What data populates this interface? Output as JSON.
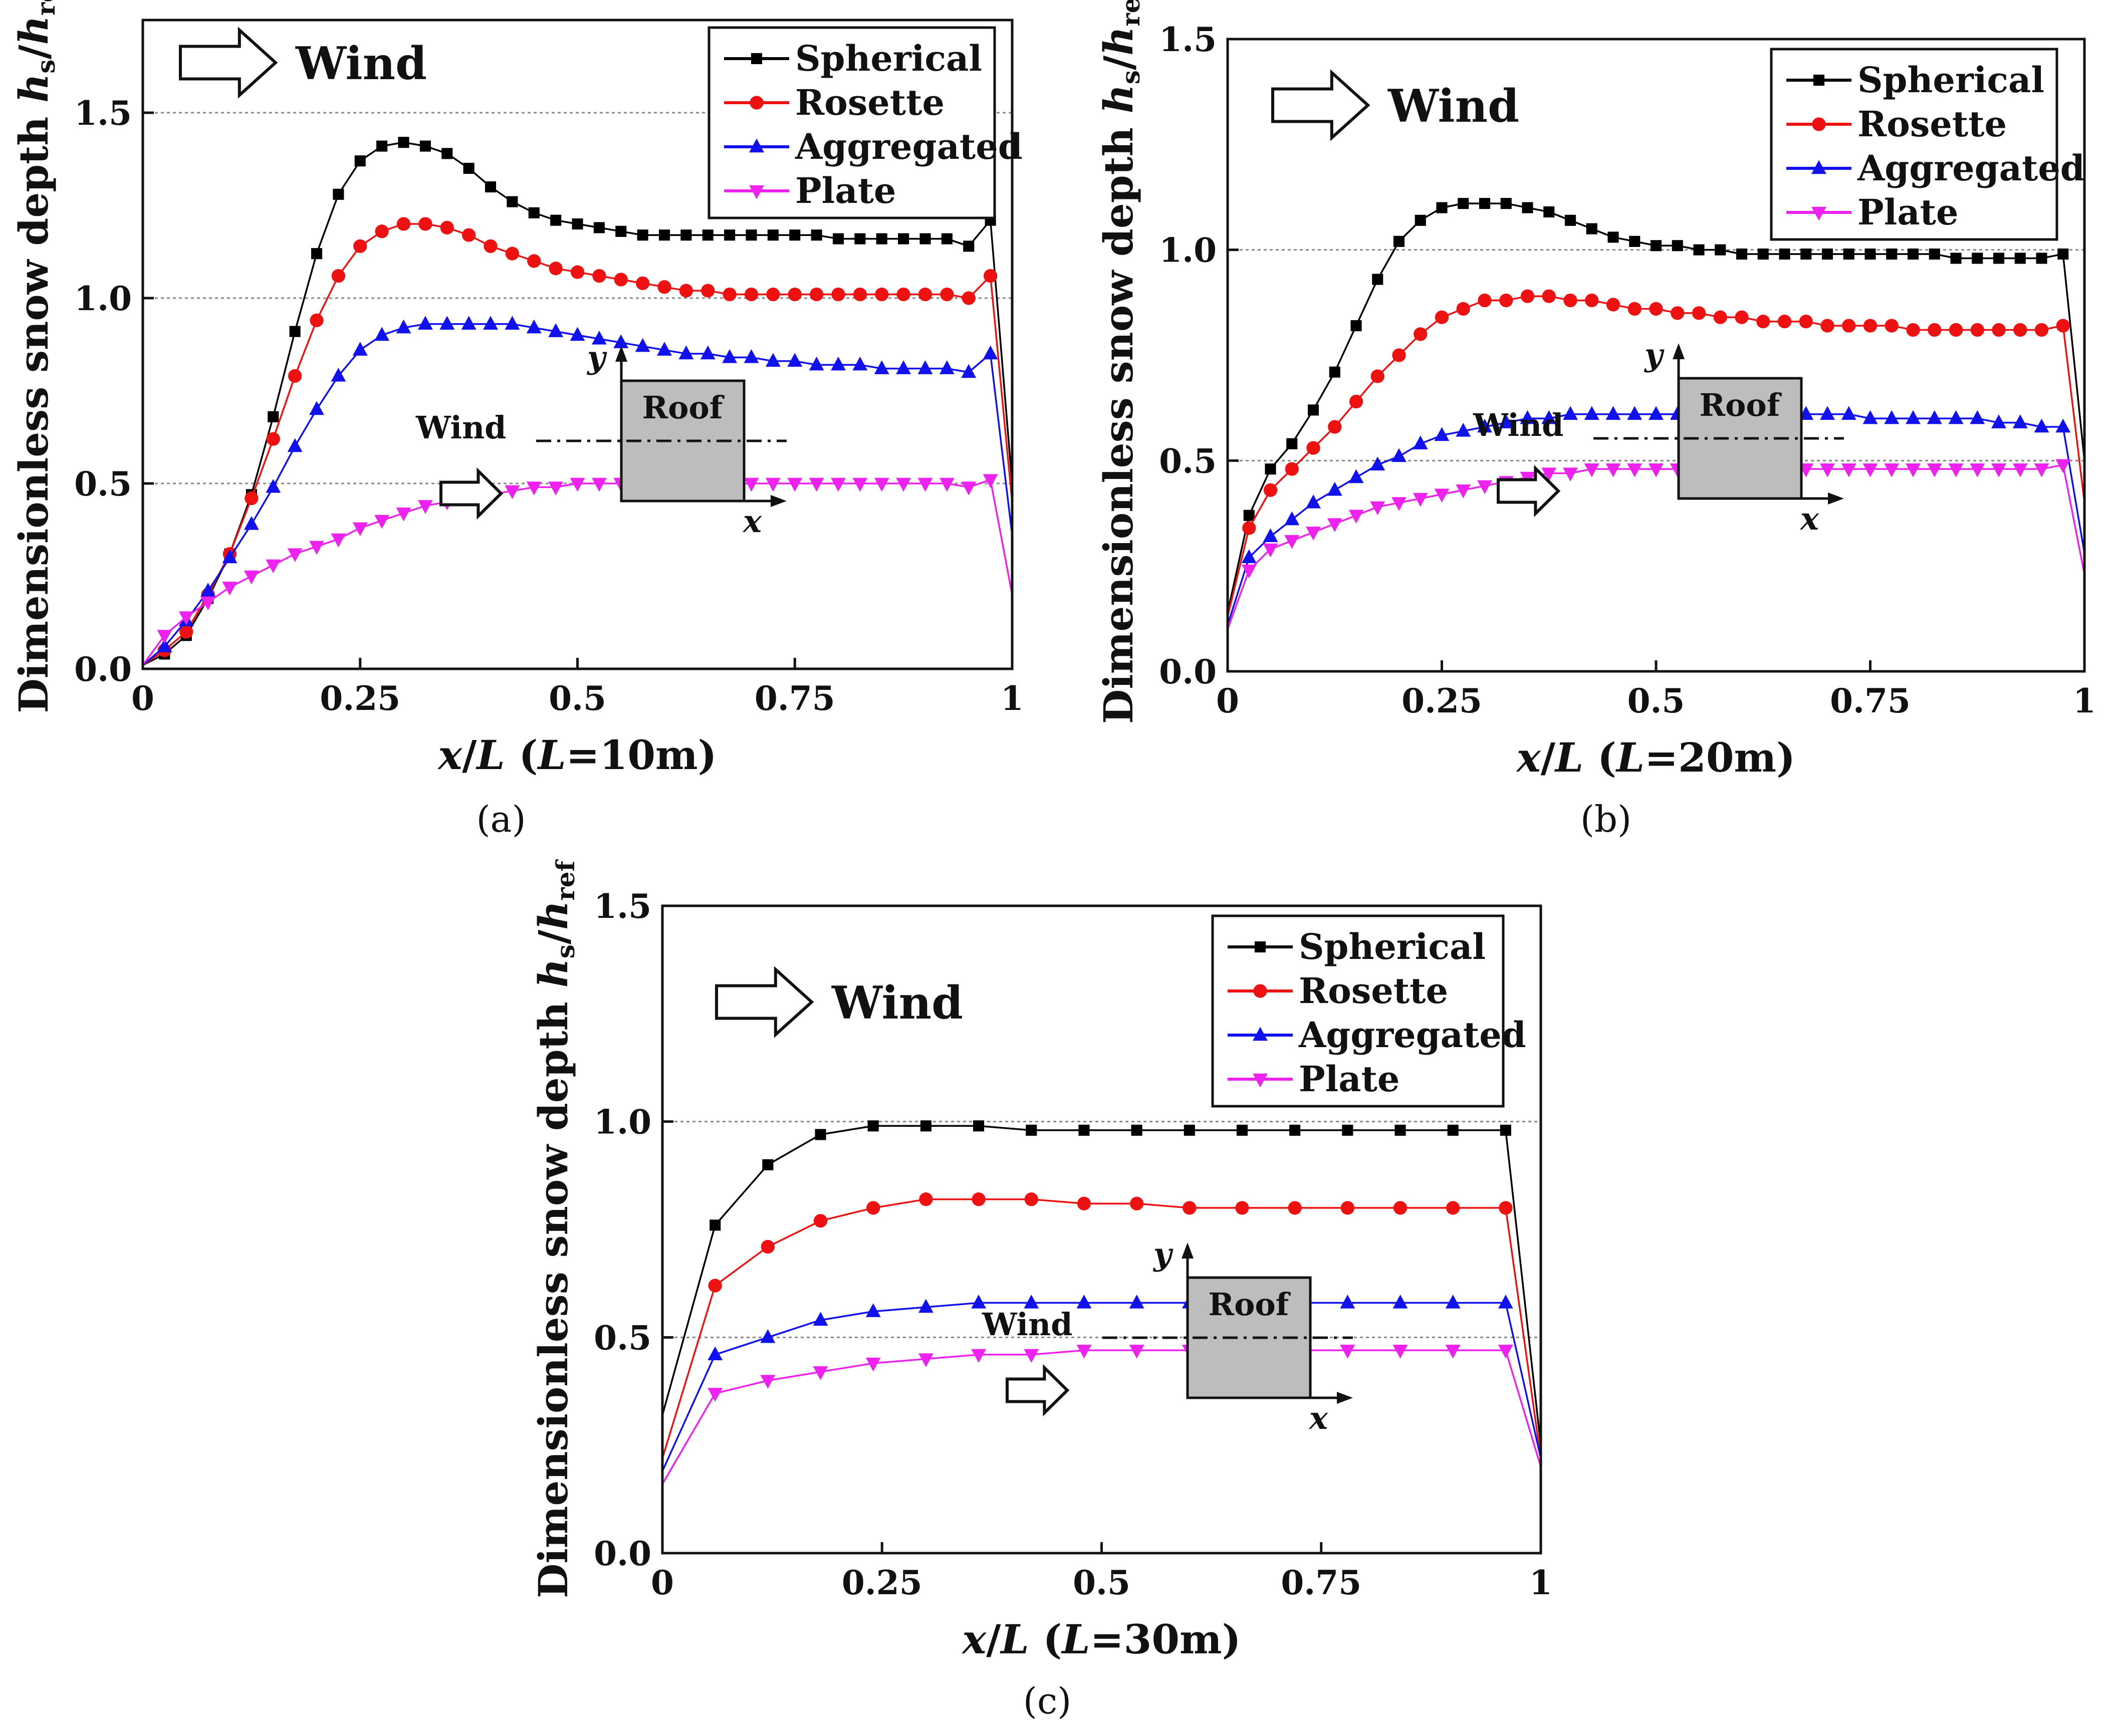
{
  "chart_data": [
    {
      "type": "line",
      "caption": "(a)",
      "xlabel": "x/L (L=10m)",
      "xlabel_parts": [
        "x",
        "/",
        "L",
        " (",
        "L",
        "=10m)"
      ],
      "ylabel": "Dimensionless snow depth hs/href",
      "ylabel_parts": [
        "Dimensionless snow depth ",
        "h",
        "s",
        "/",
        "h",
        "ref"
      ],
      "xlim": [
        0,
        1
      ],
      "ylim": [
        0,
        1.75
      ],
      "xticks": [
        0,
        0.25,
        0.5,
        0.75,
        1
      ],
      "xtick_labels": [
        "0",
        "0.25",
        "0.5",
        "0.75",
        "1"
      ],
      "yticks": [
        0,
        0.5,
        1.0,
        1.5
      ],
      "ytick_labels": [
        "0.0",
        "0.5",
        "1.0",
        "1.5"
      ],
      "gridlines_y": [
        0.5,
        1.0,
        1.5
      ],
      "wind_label": "Wind",
      "inset": {
        "wind": "Wind",
        "roof": "Roof",
        "x_axis": "x",
        "y_axis": "y"
      },
      "legend_position": "top-right",
      "x": [
        0,
        0.025,
        0.05,
        0.075,
        0.1,
        0.125,
        0.15,
        0.175,
        0.2,
        0.225,
        0.25,
        0.275,
        0.3,
        0.325,
        0.35,
        0.375,
        0.4,
        0.425,
        0.45,
        0.475,
        0.5,
        0.525,
        0.55,
        0.575,
        0.6,
        0.625,
        0.65,
        0.675,
        0.7,
        0.725,
        0.75,
        0.775,
        0.8,
        0.825,
        0.85,
        0.875,
        0.9,
        0.925,
        0.95,
        0.975,
        1.0
      ],
      "series": [
        {
          "name": "Spherical",
          "color": "#000000",
          "marker": "square",
          "values": [
            0.01,
            0.04,
            0.09,
            0.19,
            0.31,
            0.47,
            0.68,
            0.91,
            1.12,
            1.28,
            1.37,
            1.41,
            1.42,
            1.41,
            1.39,
            1.35,
            1.3,
            1.26,
            1.23,
            1.21,
            1.2,
            1.19,
            1.18,
            1.17,
            1.17,
            1.17,
            1.17,
            1.17,
            1.17,
            1.17,
            1.17,
            1.17,
            1.16,
            1.16,
            1.16,
            1.16,
            1.16,
            1.16,
            1.14,
            1.21,
            0.5
          ]
        },
        {
          "name": "Rosette",
          "color": "#ee1111",
          "marker": "circle",
          "values": [
            0.01,
            0.05,
            0.1,
            0.2,
            0.31,
            0.46,
            0.62,
            0.79,
            0.94,
            1.06,
            1.14,
            1.18,
            1.2,
            1.2,
            1.19,
            1.17,
            1.14,
            1.12,
            1.1,
            1.08,
            1.07,
            1.06,
            1.05,
            1.04,
            1.03,
            1.02,
            1.02,
            1.01,
            1.01,
            1.01,
            1.01,
            1.01,
            1.01,
            1.01,
            1.01,
            1.01,
            1.01,
            1.01,
            1.0,
            1.06,
            0.45
          ]
        },
        {
          "name": "Aggregated",
          "color": "#1111ee",
          "marker": "triangle-up",
          "values": [
            0.01,
            0.06,
            0.13,
            0.21,
            0.3,
            0.39,
            0.49,
            0.6,
            0.7,
            0.79,
            0.86,
            0.9,
            0.92,
            0.93,
            0.93,
            0.93,
            0.93,
            0.93,
            0.92,
            0.91,
            0.9,
            0.89,
            0.88,
            0.87,
            0.86,
            0.85,
            0.85,
            0.84,
            0.84,
            0.83,
            0.83,
            0.82,
            0.82,
            0.82,
            0.81,
            0.81,
            0.81,
            0.81,
            0.8,
            0.85,
            0.36
          ]
        },
        {
          "name": "Plate",
          "color": "#ee22ee",
          "marker": "triangle-down",
          "values": [
            0.01,
            0.09,
            0.14,
            0.18,
            0.22,
            0.25,
            0.28,
            0.31,
            0.33,
            0.35,
            0.38,
            0.4,
            0.42,
            0.44,
            0.45,
            0.46,
            0.47,
            0.48,
            0.49,
            0.49,
            0.5,
            0.5,
            0.5,
            0.5,
            0.5,
            0.5,
            0.5,
            0.5,
            0.5,
            0.5,
            0.5,
            0.5,
            0.5,
            0.5,
            0.5,
            0.5,
            0.5,
            0.5,
            0.49,
            0.51,
            0.2
          ]
        }
      ]
    },
    {
      "type": "line",
      "caption": "(b)",
      "xlabel": "x/L (L=20m)",
      "xlabel_parts": [
        "x",
        "/",
        "L",
        " (",
        "L",
        "=20m)"
      ],
      "ylabel": "Dimensionless snow depth hs/href",
      "ylabel_parts": [
        "Dimensionless snow depth ",
        "h",
        "s",
        "/",
        "h",
        "ref"
      ],
      "xlim": [
        0,
        1
      ],
      "ylim": [
        0,
        1.5
      ],
      "xticks": [
        0,
        0.25,
        0.5,
        0.75,
        1
      ],
      "xtick_labels": [
        "0",
        "0.25",
        "0.5",
        "0.75",
        "1"
      ],
      "yticks": [
        0,
        0.5,
        1.0,
        1.5
      ],
      "ytick_labels": [
        "0.0",
        "0.5",
        "1.0",
        "1.5"
      ],
      "gridlines_y": [
        0.5,
        1.0
      ],
      "wind_label": "Wind",
      "inset": {
        "wind": "Wind",
        "roof": "Roof",
        "x_axis": "x",
        "y_axis": "y"
      },
      "legend_position": "top-right",
      "x": [
        0,
        0.025,
        0.05,
        0.075,
        0.1,
        0.125,
        0.15,
        0.175,
        0.2,
        0.225,
        0.25,
        0.275,
        0.3,
        0.325,
        0.35,
        0.375,
        0.4,
        0.425,
        0.45,
        0.475,
        0.5,
        0.525,
        0.55,
        0.575,
        0.6,
        0.625,
        0.65,
        0.675,
        0.7,
        0.725,
        0.75,
        0.775,
        0.8,
        0.825,
        0.85,
        0.875,
        0.9,
        0.925,
        0.95,
        0.975,
        1.0
      ],
      "series": [
        {
          "name": "Spherical",
          "color": "#000000",
          "marker": "square",
          "values": [
            0.14,
            0.37,
            0.48,
            0.54,
            0.62,
            0.71,
            0.82,
            0.93,
            1.02,
            1.07,
            1.1,
            1.11,
            1.11,
            1.11,
            1.1,
            1.09,
            1.07,
            1.05,
            1.03,
            1.02,
            1.01,
            1.01,
            1.0,
            1.0,
            0.99,
            0.99,
            0.99,
            0.99,
            0.99,
            0.99,
            0.99,
            0.99,
            0.99,
            0.99,
            0.98,
            0.98,
            0.98,
            0.98,
            0.98,
            0.99,
            0.5
          ]
        },
        {
          "name": "Rosette",
          "color": "#ee1111",
          "marker": "circle",
          "values": [
            0.13,
            0.34,
            0.43,
            0.48,
            0.53,
            0.58,
            0.64,
            0.7,
            0.75,
            0.8,
            0.84,
            0.86,
            0.88,
            0.88,
            0.89,
            0.89,
            0.88,
            0.88,
            0.87,
            0.86,
            0.86,
            0.85,
            0.85,
            0.84,
            0.84,
            0.83,
            0.83,
            0.83,
            0.82,
            0.82,
            0.82,
            0.82,
            0.81,
            0.81,
            0.81,
            0.81,
            0.81,
            0.81,
            0.81,
            0.82,
            0.4
          ]
        },
        {
          "name": "Aggregated",
          "color": "#1111ee",
          "marker": "triangle-up",
          "values": [
            0.11,
            0.27,
            0.32,
            0.36,
            0.4,
            0.43,
            0.46,
            0.49,
            0.51,
            0.54,
            0.56,
            0.57,
            0.58,
            0.59,
            0.6,
            0.6,
            0.61,
            0.61,
            0.61,
            0.61,
            0.61,
            0.61,
            0.61,
            0.61,
            0.61,
            0.61,
            0.61,
            0.61,
            0.61,
            0.61,
            0.6,
            0.6,
            0.6,
            0.6,
            0.6,
            0.6,
            0.59,
            0.59,
            0.58,
            0.58,
            0.28
          ]
        },
        {
          "name": "Plate",
          "color": "#ee22ee",
          "marker": "triangle-down",
          "values": [
            0.1,
            0.24,
            0.29,
            0.31,
            0.33,
            0.35,
            0.37,
            0.39,
            0.4,
            0.41,
            0.42,
            0.43,
            0.44,
            0.45,
            0.46,
            0.47,
            0.47,
            0.48,
            0.48,
            0.48,
            0.48,
            0.48,
            0.48,
            0.48,
            0.48,
            0.48,
            0.48,
            0.48,
            0.48,
            0.48,
            0.48,
            0.48,
            0.48,
            0.48,
            0.48,
            0.48,
            0.48,
            0.48,
            0.48,
            0.49,
            0.23
          ]
        }
      ]
    },
    {
      "type": "line",
      "caption": "(c)",
      "xlabel": "x/L (L=30m)",
      "xlabel_parts": [
        "x",
        "/",
        "L",
        " (",
        "L",
        "=30m)"
      ],
      "ylabel": "Dimensionless snow depth hs/href",
      "ylabel_parts": [
        "Dimensionless snow depth ",
        "h",
        "s",
        "/",
        "h",
        "ref"
      ],
      "xlim": [
        0,
        1
      ],
      "ylim": [
        0,
        1.5
      ],
      "xticks": [
        0,
        0.25,
        0.5,
        0.75,
        1
      ],
      "xtick_labels": [
        "0",
        "0.25",
        "0.5",
        "0.75",
        "1"
      ],
      "yticks": [
        0,
        0.5,
        1.0,
        1.5
      ],
      "ytick_labels": [
        "0.0",
        "0.5",
        "1.0",
        "1.5"
      ],
      "gridlines_y": [
        0.5,
        1.0
      ],
      "wind_label": "Wind",
      "inset": {
        "wind": "Wind",
        "roof": "Roof",
        "x_axis": "x",
        "y_axis": "y"
      },
      "legend_position": "top-right",
      "x": [
        0,
        0.06,
        0.12,
        0.18,
        0.24,
        0.3,
        0.36,
        0.42,
        0.48,
        0.54,
        0.6,
        0.66,
        0.72,
        0.78,
        0.84,
        0.9,
        0.96,
        1.0
      ],
      "series": [
        {
          "name": "Spherical",
          "color": "#000000",
          "marker": "square",
          "values": [
            0.32,
            0.76,
            0.9,
            0.97,
            0.99,
            0.99,
            0.99,
            0.98,
            0.98,
            0.98,
            0.98,
            0.98,
            0.98,
            0.98,
            0.98,
            0.98,
            0.98,
            0.25
          ]
        },
        {
          "name": "Rosette",
          "color": "#ee1111",
          "marker": "circle",
          "values": [
            0.22,
            0.62,
            0.71,
            0.77,
            0.8,
            0.82,
            0.82,
            0.82,
            0.81,
            0.81,
            0.8,
            0.8,
            0.8,
            0.8,
            0.8,
            0.8,
            0.8,
            0.22
          ]
        },
        {
          "name": "Aggregated",
          "color": "#1111ee",
          "marker": "triangle-up",
          "values": [
            0.19,
            0.46,
            0.5,
            0.54,
            0.56,
            0.57,
            0.58,
            0.58,
            0.58,
            0.58,
            0.58,
            0.58,
            0.58,
            0.58,
            0.58,
            0.58,
            0.58,
            0.22
          ]
        },
        {
          "name": "Plate",
          "color": "#ee22ee",
          "marker": "triangle-down",
          "values": [
            0.16,
            0.37,
            0.4,
            0.42,
            0.44,
            0.45,
            0.46,
            0.46,
            0.47,
            0.47,
            0.47,
            0.47,
            0.47,
            0.47,
            0.47,
            0.47,
            0.47,
            0.2
          ]
        }
      ]
    }
  ]
}
